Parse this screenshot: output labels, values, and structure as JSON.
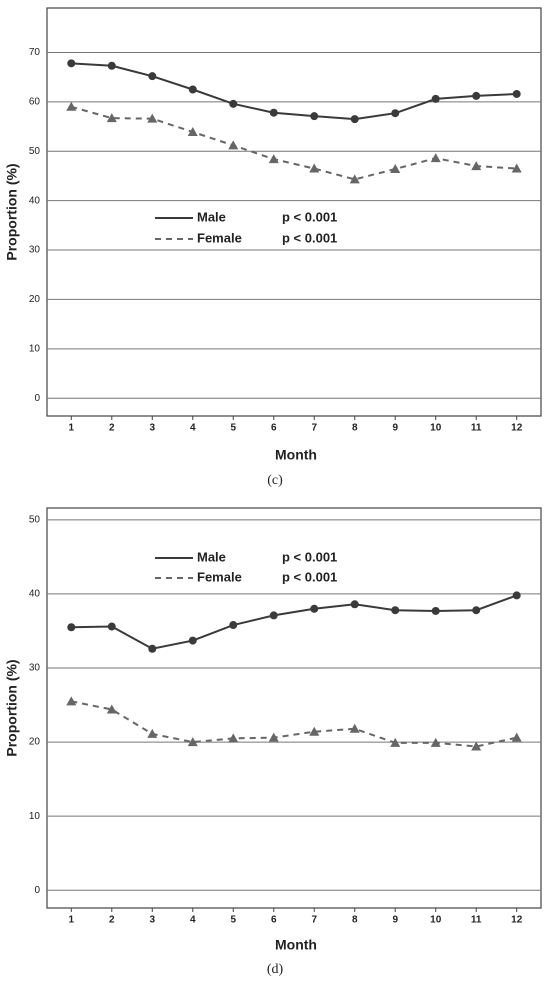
{
  "chart_data": [
    {
      "type": "line",
      "label": "(c)",
      "xlabel": "Month",
      "ylabel": "Proportion (%)",
      "x": [
        1,
        2,
        3,
        4,
        5,
        6,
        7,
        8,
        9,
        10,
        11,
        12
      ],
      "xlim": [
        0.4,
        12.6
      ],
      "xticks": [
        1,
        2,
        3,
        4,
        5,
        6,
        7,
        8,
        9,
        10,
        11,
        12
      ],
      "ylim": [
        -3.6,
        79
      ],
      "yticks": [
        0,
        10,
        20,
        30,
        40,
        50,
        60,
        70
      ],
      "grid": true,
      "series": [
        {
          "name": "Male",
          "color": "#3a3a3a",
          "dash": "solid",
          "marker": "circle",
          "annotation": "p < 0.001",
          "values": [
            67.8,
            67.3,
            65.2,
            62.5,
            59.6,
            57.8,
            57.1,
            56.5,
            57.7,
            60.6,
            61.2,
            61.6
          ]
        },
        {
          "name": "Female",
          "color": "#666666",
          "dash": "dashed",
          "marker": "triangle",
          "annotation": "p < 0.001",
          "values": [
            59.0,
            56.7,
            56.6,
            53.9,
            51.2,
            48.4,
            46.5,
            44.3,
            46.4,
            48.6,
            47.0,
            46.5
          ]
        }
      ]
    },
    {
      "type": "line",
      "label": "(d)",
      "xlabel": "Month",
      "ylabel": "Proportion (%)",
      "x": [
        1,
        2,
        3,
        4,
        5,
        6,
        7,
        8,
        9,
        10,
        11,
        12
      ],
      "xlim": [
        0.4,
        12.6
      ],
      "xticks": [
        1,
        2,
        3,
        4,
        5,
        6,
        7,
        8,
        9,
        10,
        11,
        12
      ],
      "ylim": [
        -2.4,
        51.6
      ],
      "yticks": [
        0,
        10,
        20,
        30,
        40,
        50
      ],
      "grid": true,
      "series": [
        {
          "name": "Male",
          "color": "#3a3a3a",
          "dash": "solid",
          "marker": "circle",
          "annotation": "p < 0.001",
          "values": [
            35.5,
            35.6,
            32.6,
            33.7,
            35.8,
            37.1,
            38.0,
            38.6,
            37.8,
            37.7,
            37.8,
            39.8
          ]
        },
        {
          "name": "Female",
          "color": "#666666",
          "dash": "dashed",
          "marker": "triangle",
          "annotation": "p < 0.001",
          "values": [
            25.5,
            24.4,
            21.1,
            20.0,
            20.5,
            20.6,
            21.4,
            21.8,
            19.9,
            19.9,
            19.4,
            20.6
          ]
        }
      ]
    }
  ]
}
